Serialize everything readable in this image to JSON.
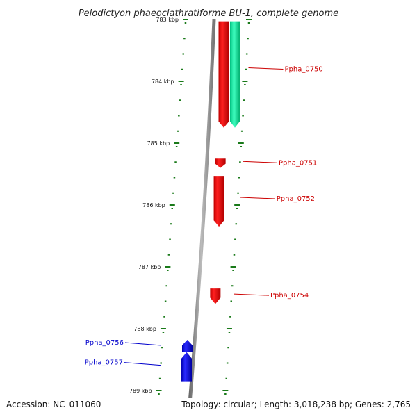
{
  "title": "Pelodictyon phaeoclathratiforme BU-1, complete genome",
  "footer": {
    "accession": "Accession: NC_011060",
    "summary": "Topology: circular; Length: 3,018,238 bp; Genes: 2,765"
  },
  "colors": {
    "forward_gene": "#ff0000",
    "reverse_gene": "#0000ff",
    "other_feature": "#00e8a0",
    "tick": "#1a7a1a",
    "backbone": "#888888"
  },
  "ticks": [
    "783 kbp",
    "784 kbp",
    "785 kbp",
    "786 kbp",
    "787 kbp",
    "788 kbp",
    "789 kbp"
  ],
  "genes": [
    {
      "id": "Ppha_0750",
      "strand": "forward",
      "start_kbp": 783.03,
      "end_kbp": 784.75,
      "labeled": true
    },
    {
      "id": "other_0750",
      "strand": "other",
      "start_kbp": 783.03,
      "end_kbp": 784.75,
      "labeled": false
    },
    {
      "id": "Ppha_0751",
      "strand": "forward",
      "start_kbp": 785.25,
      "end_kbp": 785.4,
      "labeled": true
    },
    {
      "id": "Ppha_0752",
      "strand": "forward",
      "start_kbp": 785.53,
      "end_kbp": 786.35,
      "labeled": true
    },
    {
      "id": "Ppha_0754",
      "strand": "forward",
      "start_kbp": 787.35,
      "end_kbp": 787.6,
      "labeled": true
    },
    {
      "id": "Ppha_0756",
      "strand": "reverse",
      "start_kbp": 788.18,
      "end_kbp": 788.38,
      "labeled": true
    },
    {
      "id": "Ppha_0757",
      "strand": "reverse",
      "start_kbp": 788.38,
      "end_kbp": 788.85,
      "labeled": true
    }
  ]
}
